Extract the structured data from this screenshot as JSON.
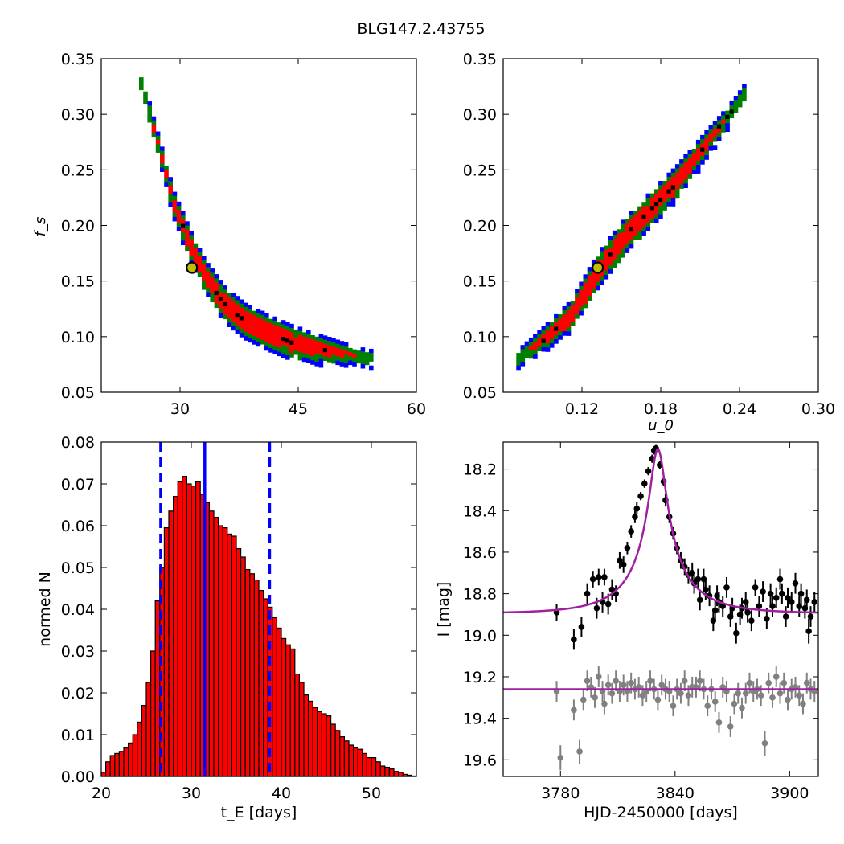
{
  "figure_title": "BLG147.2.43755",
  "colors": {
    "blue": "#0000ff",
    "green": "#008000",
    "red": "#ff0000",
    "black": "#000000",
    "marker_fill": "#bfbf00",
    "model": "#a020a0",
    "gray": "#808080"
  },
  "chart_data": [
    {
      "id": "tE_fs",
      "type": "heatmap",
      "title": "",
      "xlabel": "",
      "ylabel": "f_s",
      "xlim": [
        20,
        60
      ],
      "ylim": [
        0.05,
        0.35
      ],
      "xticks": [
        "30",
        "45",
        "60"
      ],
      "yticks": [
        "0.05",
        "0.10",
        "0.15",
        "0.20",
        "0.25",
        "0.30",
        "0.35"
      ],
      "confidence_levels": [
        "black",
        "red",
        "green",
        "blue"
      ],
      "ridge": [
        [
          24.8,
          0.33
        ],
        [
          26.0,
          0.3
        ],
        [
          27.5,
          0.26
        ],
        [
          29.0,
          0.22
        ],
        [
          31.0,
          0.185
        ],
        [
          33.0,
          0.155
        ],
        [
          35.5,
          0.13
        ],
        [
          38.0,
          0.115
        ],
        [
          41.0,
          0.105
        ],
        [
          44.0,
          0.097
        ],
        [
          48.0,
          0.09
        ],
        [
          51.5,
          0.085
        ],
        [
          54.0,
          0.082
        ]
      ],
      "best_fit": [
        31.5,
        0.162
      ]
    },
    {
      "id": "u0_fs",
      "type": "heatmap",
      "title": "",
      "xlabel": "u_0",
      "ylabel": "",
      "xlim": [
        0.06,
        0.3
      ],
      "ylim": [
        0.05,
        0.35
      ],
      "xticks": [
        "0.12",
        "0.18",
        "0.24",
        "0.30"
      ],
      "yticks": [
        "0.05",
        "0.10",
        "0.15",
        "0.20",
        "0.25",
        "0.30",
        "0.35"
      ],
      "confidence_levels": [
        "black",
        "red",
        "green",
        "blue"
      ],
      "ridge": [
        [
          0.07,
          0.082
        ],
        [
          0.09,
          0.1
        ],
        [
          0.11,
          0.12
        ],
        [
          0.13,
          0.16
        ],
        [
          0.15,
          0.19
        ],
        [
          0.17,
          0.215
        ],
        [
          0.19,
          0.24
        ],
        [
          0.21,
          0.27
        ],
        [
          0.23,
          0.3
        ],
        [
          0.245,
          0.325
        ]
      ],
      "best_fit": [
        0.132,
        0.162
      ]
    },
    {
      "id": "tE_hist",
      "type": "bar",
      "title": "",
      "xlabel": "t_E [days]",
      "ylabel": "normed N",
      "xlim": [
        20,
        55
      ],
      "ylim": [
        0.0,
        0.08
      ],
      "xticks": [
        "20",
        "30",
        "40",
        "50"
      ],
      "yticks": [
        "0.00",
        "0.01",
        "0.02",
        "0.03",
        "0.04",
        "0.05",
        "0.06",
        "0.07",
        "0.08"
      ],
      "bin_start": 20.0,
      "bin_width": 0.5,
      "values": [
        0.001,
        0.0035,
        0.005,
        0.0055,
        0.006,
        0.007,
        0.008,
        0.01,
        0.013,
        0.017,
        0.0225,
        0.03,
        0.042,
        0.05,
        0.0595,
        0.0635,
        0.067,
        0.0705,
        0.0718,
        0.07,
        0.0695,
        0.0705,
        0.0675,
        0.0655,
        0.0635,
        0.062,
        0.06,
        0.0595,
        0.058,
        0.0575,
        0.0545,
        0.0525,
        0.0495,
        0.0485,
        0.047,
        0.0445,
        0.0425,
        0.0405,
        0.038,
        0.0355,
        0.033,
        0.0315,
        0.0305,
        0.0245,
        0.0225,
        0.0195,
        0.018,
        0.0165,
        0.0155,
        0.015,
        0.0145,
        0.0125,
        0.011,
        0.0095,
        0.0085,
        0.0075,
        0.007,
        0.0065,
        0.0055,
        0.0045,
        0.0045,
        0.0035,
        0.0025,
        0.0022,
        0.0018,
        0.0012,
        0.001,
        0.0005,
        0.0003,
        0.0001
      ],
      "median": 31.5,
      "interval": [
        26.6,
        38.7
      ]
    },
    {
      "id": "lightcurve",
      "type": "scatter",
      "title": "",
      "xlabel": "HJD-2450000 [days]",
      "ylabel": "I [mag]",
      "xlim": [
        3750,
        3915
      ],
      "ylim": [
        19.68,
        18.07
      ],
      "xticks": [
        "3780",
        "3840",
        "3900"
      ],
      "yticks": [
        "18.2",
        "18.4",
        "18.6",
        "18.8",
        "19.0",
        "19.2",
        "19.4",
        "19.6"
      ],
      "model": {
        "t0": 3831,
        "tE": 31.5,
        "u0": 0.132,
        "fs": 0.162,
        "baseline": 18.895
      },
      "series": [
        {
          "id": "primary",
          "points": [
            [
              3778,
              18.89,
              0.04
            ],
            [
              3787,
              19.02,
              0.05
            ],
            [
              3791,
              18.96,
              0.05
            ],
            [
              3794,
              18.8,
              0.05
            ],
            [
              3797,
              18.73,
              0.04
            ],
            [
              3799,
              18.87,
              0.05
            ],
            [
              3800,
              18.72,
              0.04
            ],
            [
              3802,
              18.84,
              0.05
            ],
            [
              3803,
              18.72,
              0.04
            ],
            [
              3805,
              18.85,
              0.05
            ],
            [
              3807,
              18.78,
              0.05
            ],
            [
              3809,
              18.8,
              0.04
            ],
            [
              3811,
              18.64,
              0.04
            ],
            [
              3813,
              18.66,
              0.04
            ],
            [
              3815,
              18.58,
              0.03
            ],
            [
              3817,
              18.5,
              0.03
            ],
            [
              3819,
              18.43,
              0.03
            ],
            [
              3820,
              18.39,
              0.03
            ],
            [
              3822,
              18.33,
              0.02
            ],
            [
              3824,
              18.27,
              0.02
            ],
            [
              3826,
              18.21,
              0.02
            ],
            [
              3828,
              18.15,
              0.02
            ],
            [
              3829,
              18.11,
              0.02
            ],
            [
              3830,
              18.1,
              0.02
            ],
            [
              3832,
              18.18,
              0.02
            ],
            [
              3834,
              18.26,
              0.02
            ],
            [
              3835,
              18.35,
              0.03
            ],
            [
              3837,
              18.43,
              0.03
            ],
            [
              3839,
              18.51,
              0.03
            ],
            [
              3841,
              18.58,
              0.03
            ],
            [
              3843,
              18.64,
              0.04
            ],
            [
              3845,
              18.67,
              0.04
            ],
            [
              3847,
              18.71,
              0.04
            ],
            [
              3849,
              18.7,
              0.05
            ],
            [
              3850,
              18.75,
              0.05
            ],
            [
              3852,
              18.73,
              0.05
            ],
            [
              3853,
              18.83,
              0.05
            ],
            [
              3855,
              18.73,
              0.05
            ],
            [
              3856,
              18.78,
              0.05
            ],
            [
              3858,
              18.81,
              0.05
            ],
            [
              3860,
              18.93,
              0.05
            ],
            [
              3861,
              18.88,
              0.05
            ],
            [
              3862,
              18.81,
              0.05
            ],
            [
              3863,
              18.84,
              0.05
            ],
            [
              3865,
              18.86,
              0.05
            ],
            [
              3867,
              18.77,
              0.05
            ],
            [
              3869,
              18.91,
              0.05
            ],
            [
              3870,
              18.87,
              0.05
            ],
            [
              3872,
              18.99,
              0.05
            ],
            [
              3874,
              18.9,
              0.05
            ],
            [
              3875,
              18.87,
              0.05
            ],
            [
              3877,
              18.84,
              0.05
            ],
            [
              3878,
              18.89,
              0.05
            ],
            [
              3880,
              18.93,
              0.05
            ],
            [
              3882,
              18.77,
              0.04
            ],
            [
              3884,
              18.86,
              0.05
            ],
            [
              3886,
              18.79,
              0.05
            ],
            [
              3888,
              18.92,
              0.05
            ],
            [
              3890,
              18.8,
              0.05
            ],
            [
              3891,
              18.86,
              0.05
            ],
            [
              3893,
              18.82,
              0.05
            ],
            [
              3895,
              18.73,
              0.05
            ],
            [
              3896,
              18.8,
              0.05
            ],
            [
              3898,
              18.91,
              0.05
            ],
            [
              3899,
              18.82,
              0.05
            ],
            [
              3901,
              18.84,
              0.05
            ],
            [
              3903,
              18.75,
              0.05
            ],
            [
              3905,
              18.86,
              0.05
            ],
            [
              3906,
              18.8,
              0.05
            ],
            [
              3908,
              18.87,
              0.05
            ],
            [
              3909,
              18.83,
              0.05
            ],
            [
              3910,
              18.98,
              0.06
            ],
            [
              3911,
              18.91,
              0.05
            ],
            [
              3913,
              18.84,
              0.05
            ]
          ]
        },
        {
          "id": "secondary",
          "baseline": 19.26,
          "points": [
            [
              3778,
              19.27,
              0.05
            ],
            [
              3780,
              19.59,
              0.06
            ],
            [
              3787,
              19.36,
              0.05
            ],
            [
              3790,
              19.56,
              0.06
            ],
            [
              3792,
              19.31,
              0.05
            ],
            [
              3794,
              19.22,
              0.05
            ],
            [
              3796,
              19.25,
              0.05
            ],
            [
              3798,
              19.3,
              0.05
            ],
            [
              3800,
              19.2,
              0.05
            ],
            [
              3802,
              19.27,
              0.05
            ],
            [
              3803,
              19.33,
              0.05
            ],
            [
              3805,
              19.24,
              0.05
            ],
            [
              3807,
              19.28,
              0.05
            ],
            [
              3809,
              19.22,
              0.05
            ],
            [
              3811,
              19.27,
              0.05
            ],
            [
              3813,
              19.24,
              0.05
            ],
            [
              3815,
              19.27,
              0.05
            ],
            [
              3817,
              19.23,
              0.05
            ],
            [
              3819,
              19.26,
              0.05
            ],
            [
              3821,
              19.25,
              0.05
            ],
            [
              3823,
              19.29,
              0.05
            ],
            [
              3825,
              19.27,
              0.05
            ],
            [
              3827,
              19.22,
              0.05
            ],
            [
              3829,
              19.26,
              0.05
            ],
            [
              3831,
              19.31,
              0.05
            ],
            [
              3833,
              19.24,
              0.05
            ],
            [
              3835,
              19.26,
              0.05
            ],
            [
              3837,
              19.27,
              0.05
            ],
            [
              3839,
              19.34,
              0.05
            ],
            [
              3841,
              19.26,
              0.05
            ],
            [
              3843,
              19.28,
              0.05
            ],
            [
              3845,
              19.22,
              0.05
            ],
            [
              3847,
              19.29,
              0.05
            ],
            [
              3849,
              19.25,
              0.05
            ],
            [
              3851,
              19.25,
              0.05
            ],
            [
              3853,
              19.22,
              0.05
            ],
            [
              3855,
              19.26,
              0.05
            ],
            [
              3857,
              19.34,
              0.05
            ],
            [
              3859,
              19.26,
              0.05
            ],
            [
              3861,
              19.32,
              0.05
            ],
            [
              3863,
              19.42,
              0.05
            ],
            [
              3865,
              19.25,
              0.05
            ],
            [
              3867,
              19.27,
              0.05
            ],
            [
              3869,
              19.44,
              0.05
            ],
            [
              3871,
              19.33,
              0.05
            ],
            [
              3873,
              19.28,
              0.05
            ],
            [
              3875,
              19.35,
              0.05
            ],
            [
              3877,
              19.28,
              0.05
            ],
            [
              3879,
              19.23,
              0.05
            ],
            [
              3881,
              19.27,
              0.05
            ],
            [
              3883,
              19.26,
              0.05
            ],
            [
              3885,
              19.29,
              0.05
            ],
            [
              3887,
              19.52,
              0.06
            ],
            [
              3889,
              19.23,
              0.05
            ],
            [
              3891,
              19.3,
              0.05
            ],
            [
              3893,
              19.2,
              0.05
            ],
            [
              3895,
              19.28,
              0.05
            ],
            [
              3897,
              19.23,
              0.05
            ],
            [
              3899,
              19.31,
              0.05
            ],
            [
              3901,
              19.26,
              0.05
            ],
            [
              3903,
              19.25,
              0.05
            ],
            [
              3905,
              19.29,
              0.05
            ],
            [
              3907,
              19.33,
              0.05
            ],
            [
              3909,
              19.23,
              0.05
            ],
            [
              3911,
              19.26,
              0.05
            ],
            [
              3913,
              19.27,
              0.05
            ]
          ]
        }
      ]
    }
  ]
}
